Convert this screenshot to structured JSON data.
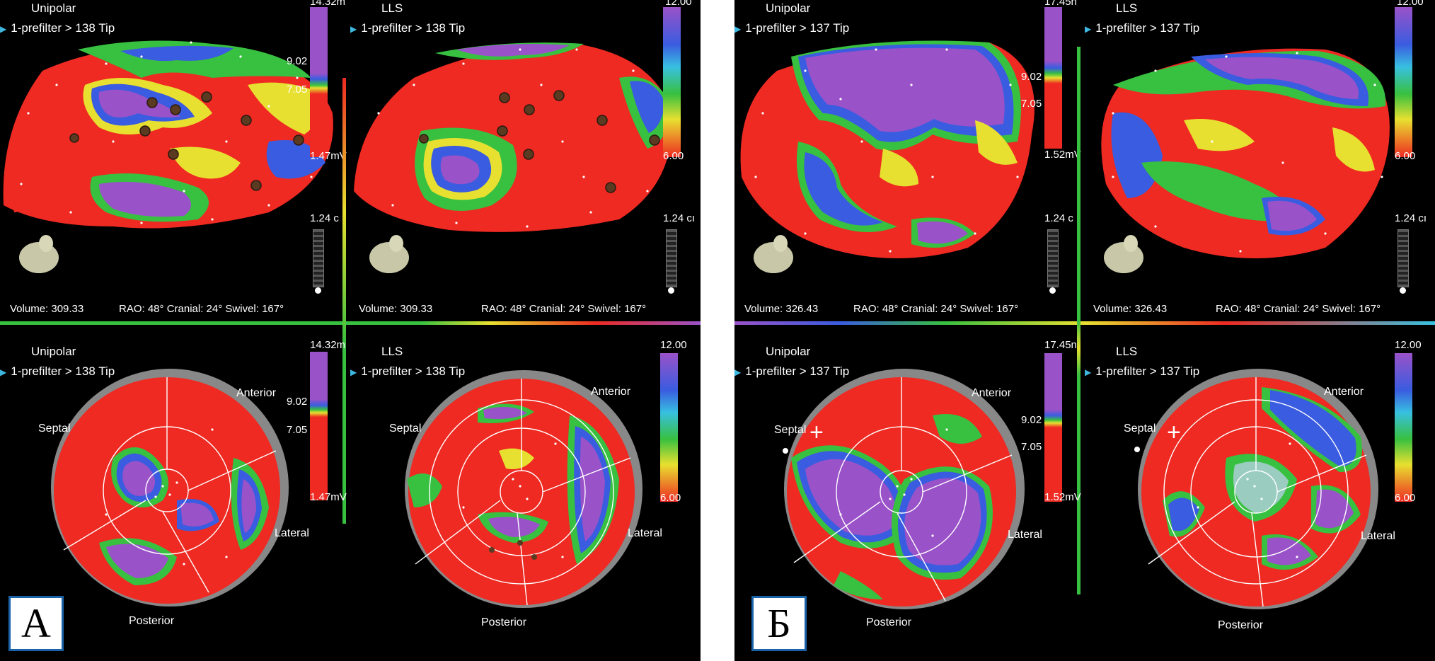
{
  "panels": [
    {
      "label": "А",
      "top_left": {
        "mode": "Unipolar",
        "filter": "1-prefilter > 138 Tip",
        "scale_top": "14.32m",
        "scale_mid1": "9.02",
        "scale_mid2": "7.05",
        "scale_bot": "1.47mV",
        "cm": "1.24 c"
      },
      "top_right": {
        "mode": "LLS",
        "filter": "1-prefilter > 138 Tip",
        "scale_top": "12.00",
        "scale_bot": "6.00",
        "cm": "1.24 cı"
      },
      "footer": {
        "volume": "Volume:  309.33",
        "angles": "RAO: 48°   Cranial: 24°   Swivel: 167°"
      },
      "bottom_left": {
        "mode": "Unipolar",
        "filter": "1-prefilter > 138 Tip",
        "scale_top": "14.32m",
        "scale_mid1": "9.02",
        "scale_mid2": "7.05",
        "scale_bot": "1.47mV"
      },
      "bottom_right": {
        "mode": "LLS",
        "filter": "1-prefilter > 138 Tip",
        "scale_top": "12.00",
        "scale_bot": "6.00"
      }
    },
    {
      "label": "Б",
      "top_left": {
        "mode": "Unipolar",
        "filter": "1-prefilter > 137 Tip",
        "scale_top": "17.45n",
        "scale_mid1": "9.02",
        "scale_mid2": "7.05",
        "scale_bot": "1.52mV",
        "cm": "1.24 c"
      },
      "top_right": {
        "mode": "LLS",
        "filter": "1-prefilter > 137 Tip",
        "scale_top": "12.00",
        "scale_bot": "6.00",
        "cm": "1.24 cı"
      },
      "footer": {
        "volume": "Volume:  326.43",
        "angles": "RAO: 48°   Cranial: 24°   Swivel: 167°"
      },
      "bottom_left": {
        "mode": "Unipolar",
        "filter": "1-prefilter > 137 Tip",
        "scale_top": "17.45n",
        "scale_mid1": "9.02",
        "scale_mid2": "7.05",
        "scale_bot": "1.52mV"
      },
      "bottom_right": {
        "mode": "LLS",
        "filter": "1-prefilter > 137 Tip",
        "scale_top": "12.00",
        "scale_bot": "6.00"
      }
    }
  ],
  "bullseye_labels": {
    "anterior": "Anterior",
    "septal": "Septal",
    "lateral": "Lateral",
    "posterior": "Posterior"
  },
  "colors": {
    "red": "#ee2a22",
    "purple": "#9a52c8",
    "blue": "#3a5ce0",
    "green": "#38c040",
    "yellow": "#e8e030"
  }
}
